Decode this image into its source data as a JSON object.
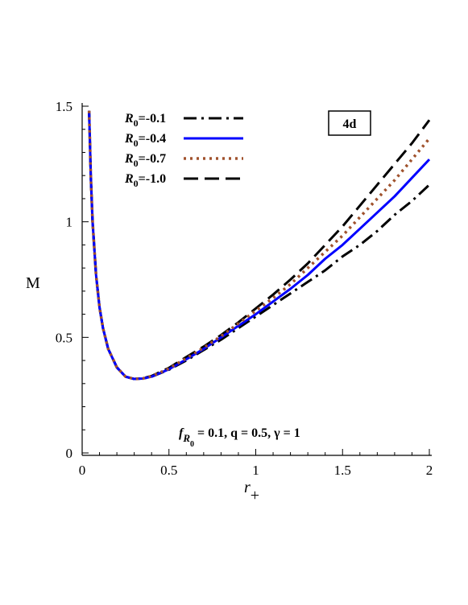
{
  "chart_data": {
    "type": "line",
    "xlabel": "r",
    "xlabel_sub": "+",
    "ylabel": "M",
    "xlim": [
      0,
      2
    ],
    "ylim": [
      0,
      1.5
    ],
    "x_ticks": [
      0,
      0.5,
      1,
      1.5,
      2
    ],
    "x_tick_labels": [
      "0",
      "0.5",
      "1",
      "1.5",
      "2"
    ],
    "y_ticks": [
      0,
      0.5,
      1,
      1.5
    ],
    "y_tick_labels": [
      "0",
      "0.5",
      "1",
      "1.5"
    ],
    "grid": false,
    "legend_position": "top-left",
    "panel_label": "4d",
    "annotation": {
      "f_main": "f",
      "f_sub": "R",
      "f_subsub": "0",
      "rest": " = 0.1, q = 0.5, γ = 1"
    },
    "x": [
      0.04,
      0.05,
      0.06,
      0.08,
      0.1,
      0.12,
      0.15,
      0.2,
      0.25,
      0.3,
      0.35,
      0.4,
      0.5,
      0.6,
      0.7,
      0.8,
      0.9,
      1.0,
      1.1,
      1.2,
      1.3,
      1.4,
      1.5,
      1.6,
      1.7,
      1.8,
      1.9,
      2.0
    ],
    "series": [
      {
        "name_main": "R",
        "name_sub": "0",
        "name_value": "=-0.1",
        "color": "#000000",
        "dash": "16,6,3,6",
        "width": 3,
        "values": [
          1.48,
          1.19,
          1.0,
          0.77,
          0.63,
          0.54,
          0.45,
          0.37,
          0.33,
          0.32,
          0.322,
          0.33,
          0.36,
          0.4,
          0.445,
          0.49,
          0.54,
          0.59,
          0.64,
          0.69,
          0.74,
          0.79,
          0.85,
          0.9,
          0.96,
          1.03,
          1.09,
          1.16
        ]
      },
      {
        "name_main": "R",
        "name_sub": "0",
        "name_value": "=-0.4",
        "color": "#0000ff",
        "dash": "",
        "width": 3,
        "values": [
          1.48,
          1.19,
          1.0,
          0.77,
          0.63,
          0.54,
          0.45,
          0.37,
          0.33,
          0.32,
          0.322,
          0.33,
          0.362,
          0.405,
          0.45,
          0.5,
          0.55,
          0.6,
          0.655,
          0.71,
          0.77,
          0.84,
          0.9,
          0.97,
          1.04,
          1.11,
          1.19,
          1.27
        ]
      },
      {
        "name_main": "R",
        "name_sub": "0",
        "name_value": "=-0.7",
        "color": "#a0522d",
        "dash": "3,5",
        "width": 3.5,
        "values": [
          1.48,
          1.19,
          1.0,
          0.77,
          0.63,
          0.54,
          0.45,
          0.37,
          0.33,
          0.32,
          0.322,
          0.332,
          0.365,
          0.41,
          0.455,
          0.505,
          0.56,
          0.615,
          0.67,
          0.73,
          0.8,
          0.87,
          0.94,
          1.02,
          1.1,
          1.18,
          1.27,
          1.36
        ]
      },
      {
        "name_main": "R",
        "name_sub": "0",
        "name_value": "=-1.0",
        "color": "#000000",
        "dash": "18,8",
        "width": 3,
        "values": [
          1.48,
          1.19,
          1.0,
          0.77,
          0.63,
          0.54,
          0.45,
          0.37,
          0.33,
          0.32,
          0.323,
          0.333,
          0.368,
          0.415,
          0.46,
          0.51,
          0.565,
          0.625,
          0.685,
          0.75,
          0.82,
          0.9,
          0.98,
          1.07,
          1.16,
          1.25,
          1.34,
          1.44
        ]
      }
    ]
  }
}
